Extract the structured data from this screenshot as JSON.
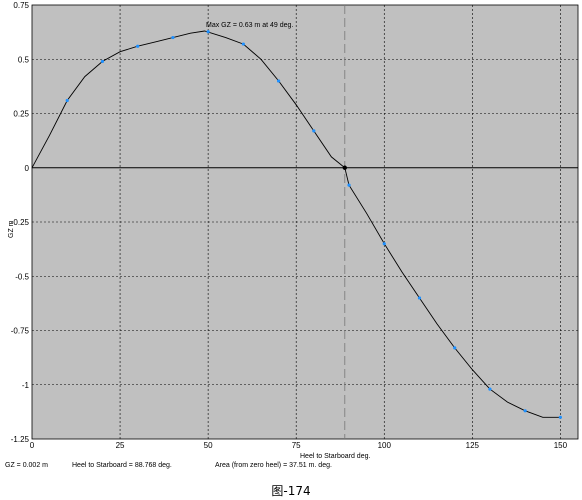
{
  "chart_data": {
    "type": "line",
    "title": "",
    "xlabel": "Heel to Starboard  deg.",
    "ylabel": "GZ  m",
    "xlim": [
      0,
      155
    ],
    "ylim": [
      -1.25,
      0.75
    ],
    "x_ticks": [
      "0",
      "25",
      "50",
      "75",
      "100",
      "125",
      "150"
    ],
    "y_ticks": [
      "0.75",
      "0.5",
      "0.25",
      "0",
      "-0.25",
      "-0.5",
      "-0.75",
      "-1",
      "-1.25"
    ],
    "grid": true,
    "series": [
      {
        "points": [
          [
            0,
            0
          ],
          [
            5,
            0.15
          ],
          [
            10,
            0.31
          ],
          [
            15,
            0.42
          ],
          [
            20,
            0.49
          ],
          [
            25,
            0.535
          ],
          [
            30,
            0.56
          ],
          [
            35,
            0.58
          ],
          [
            40,
            0.6
          ],
          [
            45,
            0.62
          ],
          [
            49,
            0.63
          ],
          [
            55,
            0.6
          ],
          [
            60,
            0.57
          ],
          [
            65,
            0.5
          ],
          [
            70,
            0.4
          ],
          [
            75,
            0.29
          ],
          [
            80,
            0.17
          ],
          [
            85,
            0.05
          ],
          [
            88.8,
            0.0
          ],
          [
            90,
            -0.08
          ],
          [
            95,
            -0.21
          ],
          [
            100,
            -0.35
          ],
          [
            105,
            -0.48
          ],
          [
            110,
            -0.6
          ],
          [
            115,
            -0.72
          ],
          [
            120,
            -0.83
          ],
          [
            125,
            -0.93
          ],
          [
            130,
            -1.02
          ],
          [
            135,
            -1.08
          ],
          [
            140,
            -1.12
          ],
          [
            145,
            -1.15
          ],
          [
            150,
            -1.15
          ]
        ],
        "markers": [
          [
            10,
            0.31
          ],
          [
            20,
            0.49
          ],
          [
            30,
            0.56
          ],
          [
            40,
            0.6
          ],
          [
            50,
            0.627
          ],
          [
            60,
            0.57
          ],
          [
            70,
            0.4
          ],
          [
            80,
            0.17
          ],
          [
            90,
            -0.08
          ],
          [
            100,
            -0.35
          ],
          [
            110,
            -0.6
          ],
          [
            120,
            -0.83
          ],
          [
            130,
            -1.02
          ],
          [
            140,
            -1.12
          ],
          [
            150,
            -1.15
          ]
        ]
      }
    ],
    "annotations": {
      "max_label": "Max GZ = 0.63 m at 49 deg.",
      "max_point": [
        49,
        0.63
      ],
      "marker_line_x": 88.8,
      "zero_cross": [
        88.8,
        0.0
      ]
    },
    "colors": {
      "plot_bg": "#c0c0c0",
      "curve": "#000000",
      "markers": "#1e90ff"
    }
  },
  "status_bar": {
    "gz": "GZ =  0.002 m",
    "heel": "Heel to Starboard =  88.768 deg.",
    "area": "Area (from zero heel) =  37.51 m. deg."
  },
  "caption": "图-174"
}
